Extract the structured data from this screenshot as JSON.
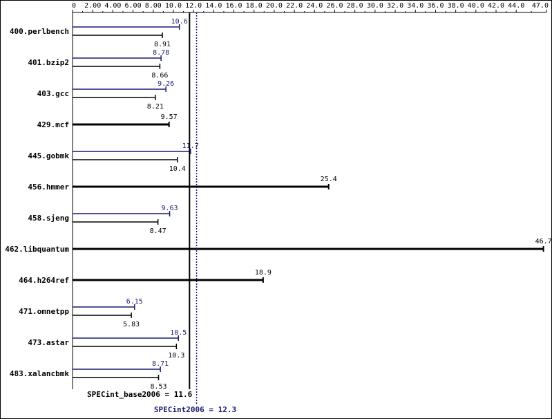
{
  "chart_data": {
    "type": "bar",
    "orientation": "horizontal",
    "xlim": [
      0,
      47.0
    ],
    "x_ticks": [
      "0",
      "2.00",
      "4.00",
      "6.00",
      "8.00",
      "10.0",
      "12.0",
      "14.0",
      "16.0",
      "18.0",
      "20.0",
      "22.0",
      "24.0",
      "26.0",
      "28.0",
      "30.0",
      "32.0",
      "34.0",
      "36.0",
      "38.0",
      "40.0",
      "42.0",
      "44.0",
      "47.0"
    ],
    "tick_values": [
      0,
      2,
      4,
      6,
      8,
      10,
      12,
      14,
      16,
      18,
      20,
      22,
      24,
      26,
      28,
      30,
      32,
      34,
      36,
      38,
      40,
      42,
      44,
      47
    ],
    "axis_position": "top",
    "grid": false,
    "categories": [
      "400.perlbench",
      "401.bzip2",
      "403.gcc",
      "429.mcf",
      "445.gobmk",
      "456.hmmer",
      "458.sjeng",
      "462.libquantum",
      "464.h264ref",
      "471.omnetpp",
      "473.astar",
      "483.xalancbmk"
    ],
    "series": [
      {
        "color": "#191970",
        "values": [
          10.6,
          8.78,
          9.26,
          9.57,
          11.7,
          25.4,
          9.63,
          46.7,
          18.9,
          6.15,
          10.5,
          8.71
        ],
        "labels": [
          "10.6",
          "8.78",
          "9.26",
          "9.57",
          "11.7",
          "25.4",
          "9.63",
          "46.7",
          "18.9",
          "6.15",
          "10.5",
          "8.71"
        ]
      },
      {
        "color": "#000000",
        "values": [
          8.91,
          8.66,
          8.21,
          9.57,
          10.4,
          25.4,
          8.47,
          46.7,
          18.9,
          5.83,
          10.3,
          8.53
        ],
        "labels": [
          "8.91",
          "8.66",
          "8.21",
          "",
          "10.4",
          "",
          "8.47",
          "",
          "",
          "5.83",
          "10.3",
          "8.53"
        ]
      }
    ],
    "reference_lines": [
      {
        "label": "SPECint_base2006 = 11.6",
        "value": 11.6,
        "color": "#000000",
        "style": "solid"
      },
      {
        "label": "SPECint2006 = 12.3",
        "value": 12.3,
        "color": "#191970",
        "style": "dotted"
      }
    ]
  }
}
